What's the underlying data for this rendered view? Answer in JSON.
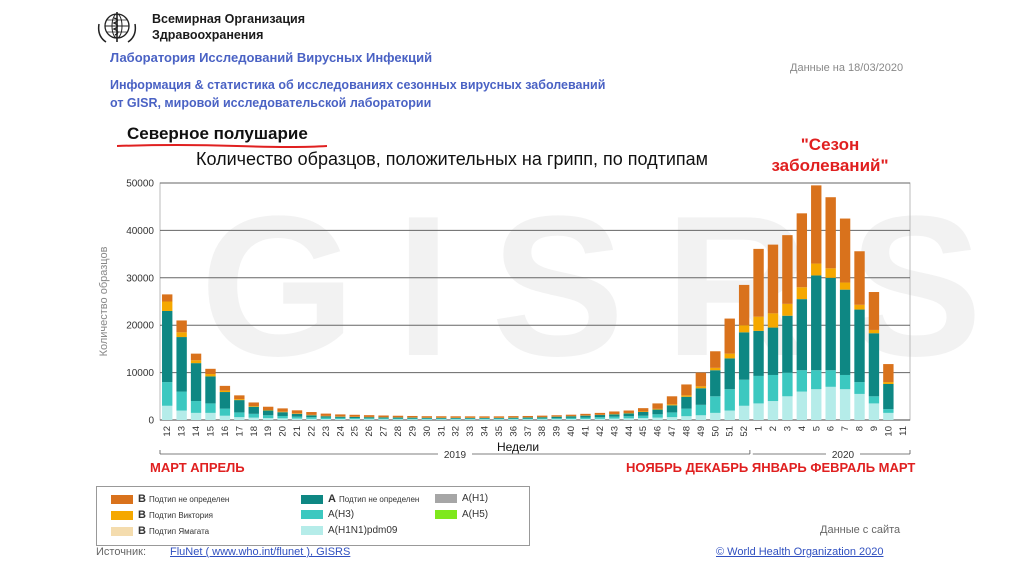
{
  "header": {
    "org_line1": "Всемирная Организация",
    "org_line2": "Здравоохранения",
    "lab": "Лаборатория Исследований Вирусных Инфекций",
    "info_line1": "Информация & статистика об исследованиях сезонных вирусных заболеваний",
    "info_line2": "от GISR, мировой исследовательской лаборатории",
    "date": "Данные на 18/03/2020"
  },
  "hemisphere": "Северное полушарие",
  "season_label_line1": "\"Сезон",
  "season_label_line2": "заболеваний\"",
  "months_left": "МАРТ АПРЕЛЬ",
  "months_right": "НОЯБРЬ ДЕКАБРЬ ЯНВАРЬ ФЕВРАЛЬ МАРТ",
  "watermark": "GISRS",
  "chart_data": {
    "type": "bar",
    "stacked": true,
    "title": "Количество образцов, положительных на грипп, по подтипам",
    "ylabel": "Количество образцов",
    "xlabel": "Недели",
    "ylim": [
      0,
      50000
    ],
    "yticks": [
      0,
      10000,
      20000,
      30000,
      40000,
      50000
    ],
    "grid": true,
    "year_labels": [
      "2019",
      "2020"
    ],
    "categories": [
      "12",
      "13",
      "14",
      "15",
      "16",
      "17",
      "18",
      "19",
      "20",
      "21",
      "22",
      "23",
      "24",
      "25",
      "26",
      "27",
      "28",
      "29",
      "30",
      "31",
      "32",
      "33",
      "34",
      "35",
      "36",
      "37",
      "38",
      "39",
      "40",
      "41",
      "42",
      "43",
      "44",
      "45",
      "46",
      "47",
      "48",
      "49",
      "50",
      "51",
      "52",
      "1",
      "2",
      "3",
      "4",
      "5",
      "6",
      "7",
      "8",
      "9",
      "10",
      "11"
    ],
    "series": [
      {
        "name": "A(H1N1)pdm09",
        "color": "#b5ece9",
        "values": [
          3000,
          2000,
          1500,
          1500,
          900,
          600,
          500,
          400,
          350,
          300,
          250,
          200,
          200,
          180,
          170,
          160,
          150,
          150,
          140,
          140,
          140,
          140,
          140,
          140,
          150,
          150,
          160,
          170,
          200,
          220,
          250,
          300,
          350,
          400,
          500,
          600,
          800,
          1000,
          1500,
          2000,
          3000,
          3500,
          4000,
          5000,
          6000,
          6500,
          7000,
          6500,
          5500,
          3500,
          1500,
          0
        ]
      },
      {
        "name": "A(H3)",
        "color": "#3cc8c0",
        "values": [
          5000,
          4000,
          2500,
          2000,
          1500,
          1000,
          800,
          600,
          500,
          400,
          350,
          300,
          250,
          220,
          200,
          180,
          170,
          160,
          150,
          150,
          150,
          150,
          150,
          150,
          160,
          170,
          180,
          200,
          250,
          300,
          350,
          400,
          450,
          500,
          700,
          1000,
          1600,
          2200,
          3500,
          4500,
          5500,
          5800,
          5500,
          5000,
          4500,
          4000,
          3500,
          3000,
          2500,
          1500,
          800,
          0
        ]
      },
      {
        "name": "A Подтип не определен",
        "color": "#0e8783",
        "values": [
          15000,
          11500,
          8000,
          5700,
          3500,
          2600,
          1500,
          1000,
          800,
          600,
          400,
          300,
          250,
          250,
          230,
          210,
          200,
          190,
          180,
          170,
          160,
          150,
          150,
          150,
          180,
          200,
          250,
          330,
          350,
          400,
          450,
          500,
          600,
          800,
          1000,
          1500,
          2500,
          3500,
          5500,
          6500,
          10000,
          9500,
          10000,
          12000,
          15000,
          20000,
          19500,
          18000,
          15300,
          13300,
          5300,
          0
        ]
      },
      {
        "name": "B Подтип Виктория",
        "color": "#f5a800",
        "values": [
          2000,
          1000,
          600,
          500,
          300,
          200,
          150,
          100,
          100,
          90,
          80,
          70,
          60,
          50,
          50,
          50,
          50,
          50,
          50,
          50,
          50,
          50,
          50,
          50,
          50,
          50,
          50,
          50,
          50,
          50,
          50,
          60,
          80,
          100,
          150,
          200,
          300,
          400,
          500,
          1000,
          1500,
          3000,
          3000,
          2500,
          2500,
          2500,
          2000,
          1500,
          1000,
          700,
          400,
          0
        ]
      },
      {
        "name": "B Подтип не определен",
        "color": "#d9721c",
        "values": [
          1500,
          2500,
          1400,
          1100,
          1000,
          800,
          750,
          700,
          700,
          650,
          600,
          480,
          420,
          400,
          370,
          350,
          330,
          300,
          280,
          280,
          280,
          280,
          280,
          280,
          280,
          280,
          280,
          250,
          270,
          330,
          400,
          540,
          520,
          700,
          1150,
          1700,
          2300,
          2900,
          3500,
          7400,
          8500,
          14300,
          14500,
          14500,
          15600,
          16500,
          15000,
          13500,
          11300,
          8000,
          3800,
          0
        ]
      },
      {
        "name": "B Подтип Ямагата",
        "color": "#f4dcae",
        "values": [
          0,
          0,
          0,
          0,
          0,
          0,
          0,
          0,
          0,
          0,
          0,
          0,
          0,
          0,
          0,
          0,
          0,
          0,
          0,
          0,
          0,
          0,
          0,
          0,
          0,
          0,
          0,
          0,
          0,
          0,
          0,
          0,
          0,
          0,
          0,
          0,
          0,
          0,
          0,
          0,
          0,
          0,
          0,
          0,
          0,
          0,
          0,
          0,
          0,
          0,
          0,
          0
        ]
      },
      {
        "name": "A(H1)",
        "color": "#a6a6a6",
        "values": [
          0,
          0,
          0,
          0,
          0,
          0,
          0,
          0,
          0,
          0,
          0,
          0,
          0,
          0,
          0,
          0,
          0,
          0,
          0,
          0,
          0,
          0,
          0,
          0,
          0,
          0,
          0,
          0,
          0,
          0,
          0,
          0,
          0,
          0,
          0,
          0,
          0,
          0,
          0,
          0,
          0,
          0,
          0,
          0,
          0,
          0,
          0,
          0,
          0,
          0,
          0,
          0
        ]
      },
      {
        "name": "A(H5)",
        "color": "#7ee81c",
        "values": [
          0,
          0,
          0,
          0,
          0,
          0,
          0,
          0,
          0,
          0,
          0,
          0,
          0,
          0,
          0,
          0,
          0,
          0,
          0,
          0,
          0,
          0,
          0,
          0,
          0,
          0,
          0,
          0,
          0,
          0,
          0,
          0,
          0,
          0,
          0,
          0,
          0,
          0,
          0,
          0,
          0,
          0,
          0,
          0,
          0,
          0,
          0,
          0,
          0,
          0,
          0,
          0
        ]
      }
    ]
  },
  "legend": {
    "b_letter": "B",
    "a_letter": "A",
    "b_undetermined": "Подтип не определен",
    "b_victoria": "Подтип Виктория",
    "b_yamagata": "Подтип Ямагата",
    "a_undetermined": "Подтип не определен",
    "a_h3": "A(H3)",
    "a_h1n1": "A(H1N1)pdm09",
    "a_h1": "A(H1)",
    "a_h5": "A(H5)"
  },
  "footer": {
    "source_label": "Источник:",
    "source_link": "FluNet ( www.who.int/flunet ), GISRS",
    "site_data": "Данные с сайта",
    "copyright": "© World Health Organization 2020"
  }
}
